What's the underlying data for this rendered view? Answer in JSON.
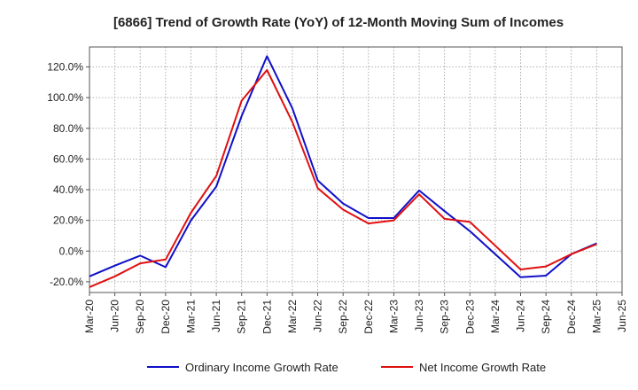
{
  "chart_data": {
    "type": "line",
    "title": "[6866]  Trend of Growth Rate (YoY) of 12-Month Moving Sum of Incomes",
    "xlabel": "",
    "ylabel": "",
    "x_tick_labels": [
      "Mar-20",
      "Jun-20",
      "Sep-20",
      "Dec-20",
      "Mar-21",
      "Jun-21",
      "Sep-21",
      "Dec-21",
      "Mar-22",
      "Jun-22",
      "Sep-22",
      "Dec-22",
      "Mar-23",
      "Jun-23",
      "Sep-23",
      "Dec-23",
      "Mar-24",
      "Jun-24",
      "Sep-24",
      "Dec-24",
      "Mar-25",
      "Jun-25"
    ],
    "y_ticks": [
      -20,
      0,
      20,
      40,
      60,
      80,
      100,
      120
    ],
    "y_tick_labels": [
      "-20.0%",
      "0.0%",
      "20.0%",
      "40.0%",
      "60.0%",
      "80.0%",
      "100.0%",
      "120.0%"
    ],
    "ylim": [
      -27,
      133
    ],
    "grid": true,
    "legend_position": "bottom",
    "series": [
      {
        "name": "Ordinary Income Growth Rate",
        "color": "#1010c8",
        "values": [
          -16.5,
          -9.5,
          -3,
          -10.5,
          20,
          42,
          88,
          127,
          93,
          46,
          31,
          21.5,
          21.5,
          39.5,
          26,
          13,
          -2,
          -17,
          -16,
          -2,
          5,
          null
        ]
      },
      {
        "name": "Net Income Growth Rate",
        "color": "#e01010",
        "values": [
          -23.5,
          -16.5,
          -8,
          -5.5,
          25,
          49,
          98,
          118,
          84,
          41,
          27,
          18,
          20,
          37,
          21,
          19,
          3.5,
          -12,
          -10,
          -2,
          4.5,
          null
        ]
      }
    ]
  }
}
